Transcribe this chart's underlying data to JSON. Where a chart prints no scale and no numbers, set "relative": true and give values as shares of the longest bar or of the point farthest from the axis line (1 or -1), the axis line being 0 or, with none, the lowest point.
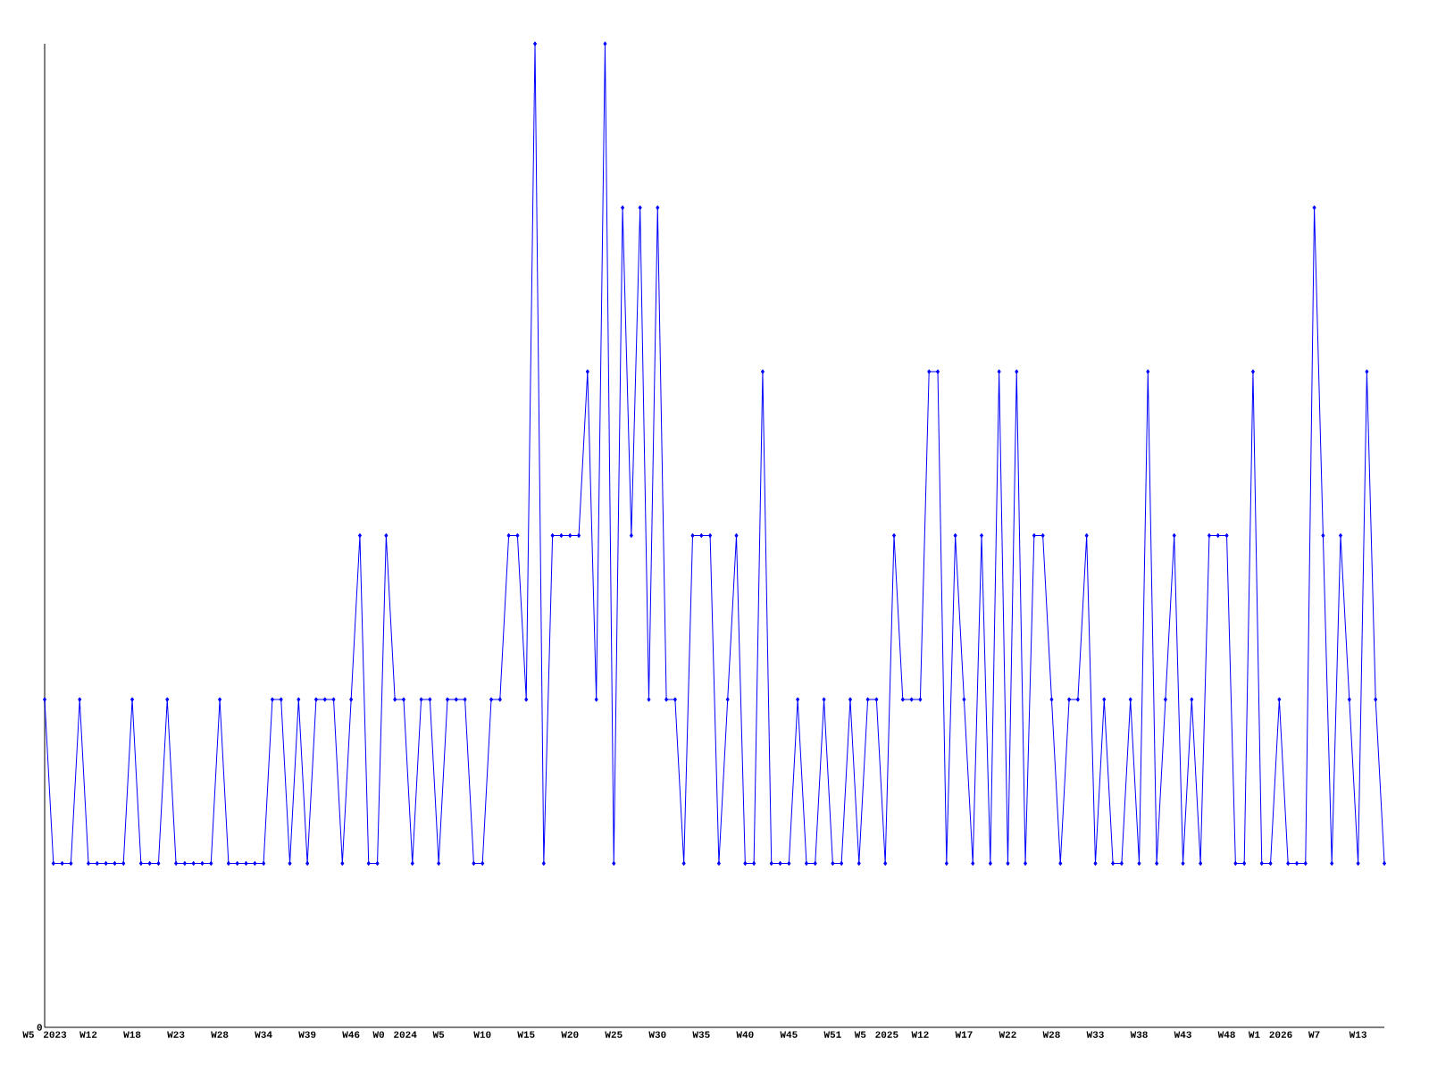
{
  "chart_data": {
    "type": "line",
    "relative": true,
    "color": "#0000ff",
    "marker": "diamond",
    "line_style": "solid",
    "grid": false,
    "annotations": [
      "0"
    ],
    "categories": [
      "W5 2023",
      null,
      null,
      null,
      null,
      "W12",
      null,
      null,
      null,
      null,
      "W18",
      null,
      null,
      null,
      null,
      "W23",
      null,
      null,
      null,
      null,
      "W28",
      null,
      null,
      null,
      null,
      "W34",
      null,
      null,
      null,
      null,
      "W39",
      null,
      null,
      null,
      null,
      "W46",
      null,
      null,
      null,
      null,
      "W0 2024",
      null,
      null,
      null,
      null,
      "W5",
      null,
      null,
      null,
      null,
      "W10",
      null,
      null,
      null,
      null,
      "W15",
      null,
      null,
      null,
      null,
      "W20",
      null,
      null,
      null,
      null,
      "W25",
      null,
      null,
      null,
      null,
      "W30",
      null,
      null,
      null,
      null,
      "W35",
      null,
      null,
      null,
      null,
      "W40",
      null,
      null,
      null,
      null,
      "W45",
      null,
      null,
      null,
      null,
      "W51",
      null,
      null,
      null,
      null,
      "W5 2025",
      null,
      null,
      null,
      null,
      "W12",
      null,
      null,
      null,
      null,
      "W17",
      null,
      null,
      null,
      null,
      "W22",
      null,
      null,
      null,
      null,
      "W28",
      null,
      null,
      null,
      null,
      "W33",
      null,
      null,
      null,
      null,
      "W38",
      null,
      null,
      null,
      null,
      "W43",
      null,
      null,
      null,
      null,
      "W48",
      null,
      null,
      null,
      null,
      "W1 2026",
      null,
      null,
      null,
      null,
      "W7",
      null,
      null,
      null,
      null,
      "W13",
      null,
      null,
      null
    ],
    "values": [
      0.3333,
      0.1667,
      0.1667,
      0.1667,
      0.3333,
      0.1667,
      0.1667,
      0.1667,
      0.1667,
      0.1667,
      0.3333,
      0.1667,
      0.1667,
      0.1667,
      0.3333,
      0.1667,
      0.1667,
      0.1667,
      0.1667,
      0.1667,
      0.3333,
      0.1667,
      0.1667,
      0.1667,
      0.1667,
      0.1667,
      0.3333,
      0.3333,
      0.1667,
      0.3333,
      0.1667,
      0.3333,
      0.3333,
      0.3333,
      0.1667,
      0.3333,
      0.5,
      0.1667,
      0.1667,
      0.5,
      0.3333,
      0.3333,
      0.1667,
      0.3333,
      0.3333,
      0.1667,
      0.3333,
      0.3333,
      0.3333,
      0.1667,
      0.1667,
      0.3333,
      0.3333,
      0.5,
      0.5,
      0.3333,
      1,
      0.1667,
      0.5,
      0.5,
      0.5,
      0.5,
      0.6667,
      0.3333,
      1,
      0.1667,
      0.8333,
      0.5,
      0.8333,
      0.3333,
      0.8333,
      0.3333,
      0.3333,
      0.1667,
      0.5,
      0.5,
      0.5,
      0.1667,
      0.3333,
      0.5,
      0.1667,
      0.1667,
      0.6667,
      0.1667,
      0.1667,
      0.1667,
      0.3333,
      0.1667,
      0.1667,
      0.3333,
      0.1667,
      0.1667,
      0.3333,
      0.1667,
      0.3333,
      0.3333,
      0.1667,
      0.5,
      0.3333,
      0.3333,
      0.3333,
      0.6667,
      0.6667,
      0.1667,
      0.5,
      0.3333,
      0.1667,
      0.5,
      0.1667,
      0.6667,
      0.1667,
      0.6667,
      0.1667,
      0.5,
      0.5,
      0.3333,
      0.1667,
      0.3333,
      0.3333,
      0.5,
      0.1667,
      0.3333,
      0.1667,
      0.1667,
      0.3333,
      0.1667,
      0.6667,
      0.1667,
      0.3333,
      0.5,
      0.1667,
      0.3333,
      0.1667,
      0.5,
      0.5,
      0.5,
      0.1667,
      0.1667,
      0.6667,
      0.1667,
      0.1667,
      0.3333,
      0.1667,
      0.1667,
      0.1667,
      0.8333,
      0.5,
      0.1667,
      0.5,
      0.3333,
      0.1667,
      0.6667,
      0.3333,
      0.1667
    ]
  }
}
